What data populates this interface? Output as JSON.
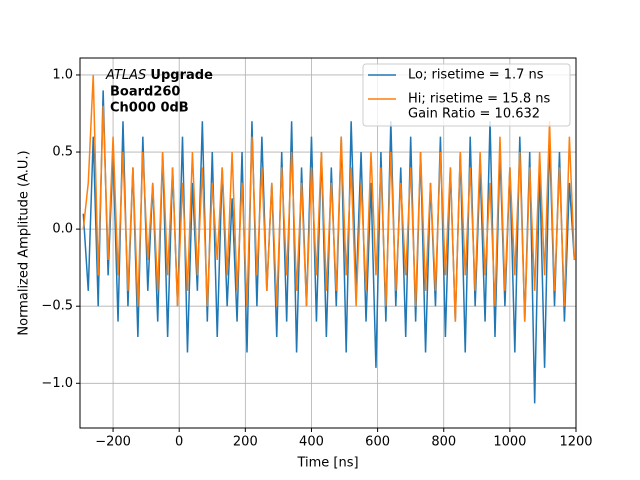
{
  "chart_data": {
    "type": "line",
    "xlabel": "Time [ns]",
    "ylabel": "Normalized Amplitude (A.U.)",
    "annotation": {
      "experiment": "ATLAS",
      "label": "Upgrade",
      "lines": [
        "Board260",
        "Ch000 0dB"
      ]
    },
    "legend_note": " Gain Ratio = 10.632",
    "legend": "upper right",
    "grid": true,
    "xlim": [
      -300,
      1200
    ],
    "xticks": [
      {
        "value": -200,
        "label": "−200"
      },
      0,
      200,
      400,
      600,
      800,
      1000,
      1200
    ],
    "ylim": [
      -1.29,
      1.11
    ],
    "yticks": [
      {
        "value": -1.0,
        "label": "−1.0"
      },
      {
        "value": -0.5,
        "label": "−0.5"
      },
      {
        "value": 0.0,
        "label": "0.0"
      },
      0.5,
      {
        "value": 1.0,
        "label": "1.0"
      }
    ],
    "x": [
      -290,
      -275,
      -260,
      -245,
      -230,
      -215,
      -200,
      -185,
      -170,
      -155,
      -140,
      -125,
      -110,
      -95,
      -80,
      -65,
      -50,
      -35,
      -20,
      -5,
      10,
      25,
      40,
      55,
      70,
      85,
      100,
      115,
      130,
      145,
      160,
      175,
      190,
      205,
      220,
      235,
      250,
      265,
      280,
      295,
      310,
      325,
      340,
      355,
      370,
      385,
      400,
      415,
      430,
      445,
      460,
      475,
      490,
      505,
      520,
      535,
      550,
      565,
      580,
      595,
      610,
      625,
      640,
      655,
      670,
      685,
      700,
      715,
      730,
      745,
      760,
      775,
      790,
      805,
      820,
      835,
      850,
      865,
      880,
      895,
      910,
      925,
      940,
      955,
      970,
      985,
      1000,
      1015,
      1030,
      1045,
      1060,
      1075,
      1090,
      1105,
      1120,
      1135,
      1150,
      1165,
      1180,
      1195
    ],
    "series": [
      {
        "name": "Lo; risetime = 1.7 ns",
        "color": "#1f77b4",
        "values": [
          0.1,
          -0.4,
          0.6,
          -0.5,
          0.9,
          -0.3,
          0.5,
          -0.6,
          0.7,
          -0.5,
          0.4,
          -0.7,
          0.6,
          -0.4,
          0.3,
          -0.6,
          0.5,
          -0.7,
          0.4,
          -0.5,
          0.6,
          -0.8,
          0.3,
          -0.4,
          0.7,
          -0.6,
          0.5,
          -0.7,
          0.4,
          -0.5,
          0.2,
          -0.6,
          0.5,
          -0.8,
          0.7,
          -0.5,
          0.6,
          -0.4,
          0.3,
          -0.7,
          0.5,
          -0.6,
          0.7,
          -0.8,
          0.4,
          -0.5,
          0.6,
          -0.6,
          0.5,
          -0.7,
          0.4,
          -0.5,
          0.6,
          -0.8,
          0.7,
          -0.4,
          0.5,
          -0.6,
          0.3,
          -0.9,
          0.5,
          -0.6,
          0.7,
          -0.5,
          0.4,
          -0.7,
          0.6,
          -0.6,
          0.5,
          -0.8,
          0.3,
          -0.5,
          0.6,
          -0.7,
          0.4,
          -0.6,
          0.5,
          -0.8,
          0.6,
          -0.5,
          0.4,
          -0.6,
          0.7,
          -0.7,
          0.5,
          -0.5,
          0.4,
          -0.8,
          0.6,
          -0.6,
          0.5,
          -1.13,
          0.4,
          -0.9,
          0.6,
          -0.5,
          0.5,
          -0.6,
          0.3,
          -0.2
        ]
      },
      {
        "name": "Hi; risetime = 15.8 ns",
        "color": "#ff7f0e",
        "values": [
          0.0,
          0.3,
          1.0,
          -0.3,
          0.8,
          -0.2,
          0.6,
          -0.3,
          0.5,
          -0.4,
          0.4,
          -0.5,
          0.5,
          -0.2,
          0.3,
          -0.4,
          0.5,
          -0.3,
          0.4,
          -0.5,
          0.3,
          -0.4,
          0.5,
          -0.3,
          0.4,
          -0.5,
          0.3,
          -0.2,
          0.4,
          -0.3,
          0.5,
          -0.4,
          0.3,
          -0.5,
          0.6,
          -0.3,
          0.4,
          -0.4,
          0.3,
          -0.5,
          0.4,
          -0.3,
          0.5,
          -0.4,
          0.3,
          -0.5,
          0.4,
          -0.3,
          0.5,
          -0.4,
          0.3,
          -0.4,
          0.6,
          -0.3,
          0.4,
          -0.5,
          0.3,
          -0.4,
          0.5,
          -0.3,
          0.4,
          -0.5,
          0.5,
          -0.4,
          0.3,
          -0.3,
          0.4,
          -0.5,
          0.5,
          -0.4,
          0.3,
          -0.4,
          0.5,
          -0.3,
          0.4,
          -0.6,
          0.5,
          -0.3,
          0.4,
          -0.4,
          0.5,
          -0.3,
          0.3,
          -0.5,
          0.6,
          -0.4,
          0.4,
          -0.3,
          0.5,
          -0.6,
          0.4,
          -0.4,
          0.5,
          -0.3,
          0.7,
          -0.4,
          0.4,
          -0.5,
          0.6,
          -0.2
        ]
      }
    ]
  }
}
